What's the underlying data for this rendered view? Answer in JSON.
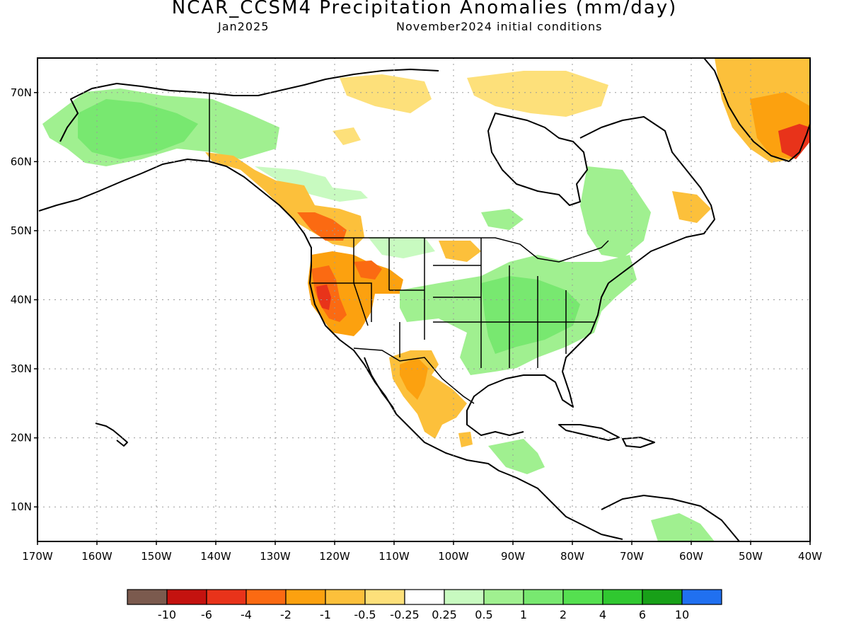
{
  "title": "NCAR_CCSM4 Precipitation Anomalies (mm/day)",
  "subtitle_left": "Jan2025",
  "subtitle_right": "November2024 initial conditions",
  "map": {
    "lon_range": [
      -170,
      -40
    ],
    "lat_range": [
      5,
      75
    ],
    "lat_labels": [
      "70N",
      "60N",
      "50N",
      "40N",
      "30N",
      "20N",
      "10N"
    ],
    "lon_labels": [
      "170W",
      "160W",
      "150W",
      "140W",
      "130W",
      "120W",
      "110W",
      "100W",
      "90W",
      "80W",
      "70W",
      "60W",
      "50W",
      "40W"
    ],
    "gridlines": "dotted"
  },
  "colorbar": {
    "labels": [
      "-10",
      "-6",
      "-4",
      "-2",
      "-1",
      "-0.5",
      "-0.25",
      "0.25",
      "0.5",
      "1",
      "2",
      "4",
      "6",
      "10"
    ],
    "colors": [
      "#7b5a4e",
      "#c4120f",
      "#e8331a",
      "#fb6a12",
      "#fca10f",
      "#fcc03b",
      "#fde07a",
      "#ffffff",
      "#c8fac0",
      "#a0f090",
      "#78e870",
      "#55e050",
      "#30c830",
      "#18a018",
      "#2070f0"
    ]
  },
  "colors": {
    "wet_light": "#c8fac0",
    "wet_mid": "#a0f090",
    "wet_strong": "#78e870",
    "dry_light": "#fde07a",
    "dry_mid": "#fca10f",
    "dry_strong": "#fb6a12",
    "dry_extreme": "#e8331a"
  }
}
